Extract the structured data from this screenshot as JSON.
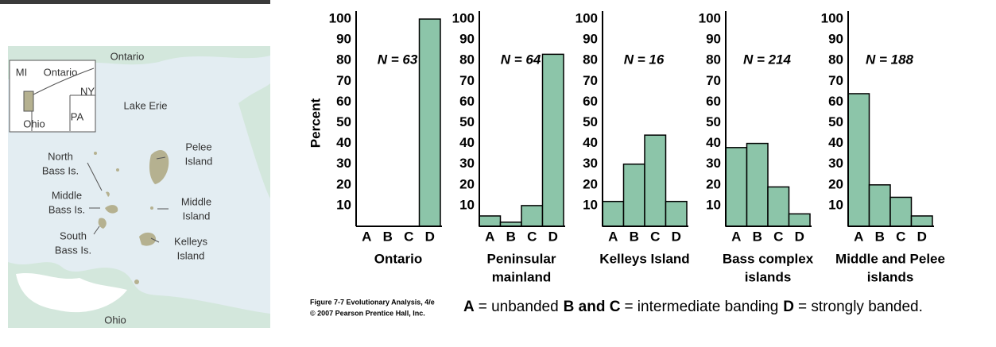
{
  "chart_data": [
    {
      "type": "bar",
      "ylabel": "Percent",
      "annotation": "N = 63",
      "xlabel": [
        "Ontario"
      ],
      "categories": [
        "A",
        "B",
        "C",
        "D"
      ],
      "values": [
        0,
        0,
        0,
        100
      ],
      "color": "#8cc5a9",
      "ylim": [
        0,
        100
      ],
      "yticks": [
        10,
        20,
        30,
        40,
        50,
        60,
        70,
        80,
        90,
        100
      ]
    },
    {
      "type": "bar",
      "annotation": "N = 64",
      "xlabel": [
        "Peninsular",
        "mainland"
      ],
      "categories": [
        "A",
        "B",
        "C",
        "D"
      ],
      "values": [
        5,
        2,
        10,
        83
      ],
      "color": "#8cc5a9",
      "ylim": [
        0,
        100
      ],
      "yticks": [
        10,
        20,
        30,
        40,
        50,
        60,
        70,
        80,
        90,
        100
      ]
    },
    {
      "type": "bar",
      "annotation": "N = 16",
      "xlabel": [
        "Kelleys Island"
      ],
      "categories": [
        "A",
        "B",
        "C",
        "D"
      ],
      "values": [
        12,
        30,
        44,
        12
      ],
      "color": "#8cc5a9",
      "ylim": [
        0,
        100
      ],
      "yticks": [
        10,
        20,
        30,
        40,
        50,
        60,
        70,
        80,
        90,
        100
      ]
    },
    {
      "type": "bar",
      "annotation": "N =  214",
      "xlabel": [
        "Bass complex",
        "islands"
      ],
      "categories": [
        "A",
        "B",
        "C",
        "D"
      ],
      "values": [
        38,
        40,
        19,
        6
      ],
      "color": "#8cc5a9",
      "ylim": [
        0,
        100
      ],
      "yticks": [
        10,
        20,
        30,
        40,
        50,
        60,
        70,
        80,
        90,
        100
      ]
    },
    {
      "type": "bar",
      "annotation": "N = 188",
      "xlabel": [
        "Middle and Pelee",
        "islands"
      ],
      "categories": [
        "A",
        "B",
        "C",
        "D"
      ],
      "values": [
        64,
        20,
        14,
        5
      ],
      "color": "#8cc5a9",
      "ylim": [
        0,
        100
      ],
      "yticks": [
        10,
        20,
        30,
        40,
        50,
        60,
        70,
        80,
        90,
        100
      ]
    }
  ],
  "map": {
    "labels": [
      {
        "lines": [
          "Ontario"
        ]
      },
      {
        "lines": [
          "Lake Erie"
        ]
      },
      {
        "lines": [
          "MI"
        ]
      },
      {
        "lines": [
          "Ontario"
        ]
      },
      {
        "lines": [
          "NY"
        ]
      },
      {
        "lines": [
          "Ohio"
        ]
      },
      {
        "lines": [
          "PA"
        ]
      },
      {
        "lines": [
          "North",
          "Bass Is."
        ]
      },
      {
        "lines": [
          "Middle",
          "Bass Is."
        ]
      },
      {
        "lines": [
          "South",
          "Bass Is."
        ]
      },
      {
        "lines": [
          "Pelee",
          "Island"
        ]
      },
      {
        "lines": [
          "Middle",
          "Island"
        ]
      },
      {
        "lines": [
          "Kelleys",
          "Island"
        ]
      },
      {
        "lines": [
          "Ohio"
        ]
      }
    ]
  },
  "caption": [
    "Figure 7-7  Evolutionary Analysis, 4/e",
    "© 2007 Pearson Prentice Hall, Inc."
  ],
  "key": [
    {
      "bold": "A",
      "text": "= unbanded"
    },
    {
      "bold": "B and C",
      "text": "= intermediate banding"
    },
    {
      "bold": "D",
      "text": "= strongly banded."
    }
  ]
}
